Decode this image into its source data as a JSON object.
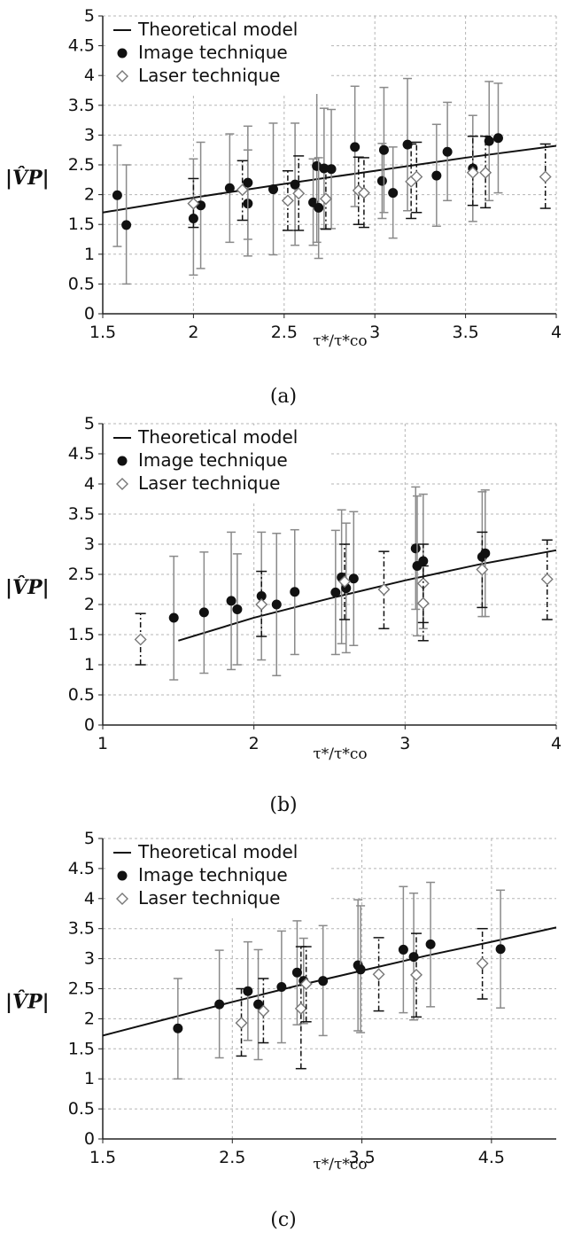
{
  "chart_data": [
    {
      "type": "scatter",
      "panel_label": "(a)",
      "xlabel": "τ*/τ*co",
      "ylabel": "|V̂P|",
      "xlim": [
        1.5,
        4
      ],
      "ylim": [
        0,
        5
      ],
      "x_ticks": [
        "1.5",
        "2",
        "2.5",
        "3",
        "3.5",
        "4"
      ],
      "y_ticks": [
        "0",
        "0.5",
        "1",
        "1.5",
        "2",
        "2.5",
        "3",
        "3.5",
        "4",
        "4.5",
        "5"
      ],
      "grid": true,
      "legend_position": "top-left",
      "series": [
        {
          "name": "Theoretical model",
          "kind": "line",
          "x": [
            1.5,
            2,
            2.5,
            3,
            3.5,
            4
          ],
          "y": [
            1.7,
            1.95,
            2.18,
            2.4,
            2.62,
            2.82
          ]
        },
        {
          "name": "Image technique",
          "kind": "filled-circle",
          "points": [
            {
              "x": 1.58,
              "y": 1.99,
              "lo": 1.13,
              "hi": 2.83
            },
            {
              "x": 1.63,
              "y": 1.49,
              "lo": 0.5,
              "hi": 2.5
            },
            {
              "x": 2.0,
              "y": 1.6,
              "lo": 0.65,
              "hi": 2.6
            },
            {
              "x": 2.04,
              "y": 1.82,
              "lo": 0.76,
              "hi": 2.88
            },
            {
              "x": 2.2,
              "y": 2.11,
              "lo": 1.2,
              "hi": 3.02
            },
            {
              "x": 2.3,
              "y": 1.85,
              "lo": 0.97,
              "hi": 2.75
            },
            {
              "x": 2.3,
              "y": 2.2,
              "lo": 1.25,
              "hi": 3.15
            },
            {
              "x": 2.44,
              "y": 2.09,
              "lo": 0.99,
              "hi": 3.2
            },
            {
              "x": 2.56,
              "y": 2.17,
              "lo": 1.15,
              "hi": 3.2
            },
            {
              "x": 2.66,
              "y": 1.87,
              "lo": 1.15,
              "hi": 2.6
            },
            {
              "x": 2.68,
              "y": 2.48,
              "lo": 1.2,
              "hi": 3.77
            },
            {
              "x": 2.69,
              "y": 1.78,
              "lo": 0.93,
              "hi": 2.62
            },
            {
              "x": 2.72,
              "y": 2.44,
              "lo": 1.43,
              "hi": 3.45
            },
            {
              "x": 2.76,
              "y": 2.43,
              "lo": 1.43,
              "hi": 3.43
            },
            {
              "x": 2.89,
              "y": 2.8,
              "lo": 1.8,
              "hi": 3.82
            },
            {
              "x": 3.04,
              "y": 2.23,
              "lo": 1.6,
              "hi": 2.86
            },
            {
              "x": 3.05,
              "y": 2.75,
              "lo": 1.7,
              "hi": 3.8
            },
            {
              "x": 3.1,
              "y": 2.03,
              "lo": 1.27,
              "hi": 2.8
            },
            {
              "x": 3.18,
              "y": 2.84,
              "lo": 1.73,
              "hi": 3.95
            },
            {
              "x": 3.34,
              "y": 2.32,
              "lo": 1.47,
              "hi": 3.18
            },
            {
              "x": 3.4,
              "y": 2.72,
              "lo": 1.9,
              "hi": 3.55
            },
            {
              "x": 3.54,
              "y": 2.44,
              "lo": 1.55,
              "hi": 3.33
            },
            {
              "x": 3.63,
              "y": 2.9,
              "lo": 1.9,
              "hi": 3.9
            },
            {
              "x": 3.68,
              "y": 2.95,
              "lo": 2.03,
              "hi": 3.87
            }
          ]
        },
        {
          "name": "Laser technique",
          "kind": "open-diamond",
          "points": [
            {
              "x": 2.0,
              "y": 1.85,
              "lo": 1.45,
              "hi": 2.27
            },
            {
              "x": 2.27,
              "y": 2.08,
              "lo": 1.57,
              "hi": 2.57
            },
            {
              "x": 2.52,
              "y": 1.9,
              "lo": 1.4,
              "hi": 2.4
            },
            {
              "x": 2.58,
              "y": 2.02,
              "lo": 1.4,
              "hi": 2.65
            },
            {
              "x": 2.73,
              "y": 1.93,
              "lo": 1.42,
              "hi": 2.45
            },
            {
              "x": 2.91,
              "y": 2.07,
              "lo": 1.5,
              "hi": 2.63
            },
            {
              "x": 2.94,
              "y": 2.03,
              "lo": 1.45,
              "hi": 2.62
            },
            {
              "x": 3.2,
              "y": 2.22,
              "lo": 1.6,
              "hi": 2.85
            },
            {
              "x": 3.23,
              "y": 2.3,
              "lo": 1.7,
              "hi": 2.88
            },
            {
              "x": 3.54,
              "y": 2.37,
              "lo": 1.82,
              "hi": 2.98
            },
            {
              "x": 3.61,
              "y": 2.37,
              "lo": 1.78,
              "hi": 2.98
            },
            {
              "x": 3.94,
              "y": 2.3,
              "lo": 1.77,
              "hi": 2.85
            }
          ]
        }
      ]
    },
    {
      "type": "scatter",
      "panel_label": "(b)",
      "xlabel": "τ*/τ*co",
      "ylabel": "|V̂P|",
      "xlim": [
        1,
        4
      ],
      "ylim": [
        0,
        5
      ],
      "x_ticks": [
        "1",
        "2",
        "3",
        "4"
      ],
      "y_ticks": [
        "0",
        "0.5",
        "1",
        "1.5",
        "2",
        "2.5",
        "3",
        "3.5",
        "4",
        "4.5",
        "5"
      ],
      "grid": true,
      "legend_position": "top-left",
      "series": [
        {
          "name": "Theoretical model",
          "kind": "line",
          "x": [
            1.5,
            2,
            2.5,
            3,
            3.5,
            4
          ],
          "y": [
            1.4,
            1.78,
            2.1,
            2.4,
            2.67,
            2.9
          ]
        },
        {
          "name": "Image technique",
          "kind": "filled-circle",
          "points": [
            {
              "x": 1.47,
              "y": 1.78,
              "lo": 0.75,
              "hi": 2.8
            },
            {
              "x": 1.67,
              "y": 1.87,
              "lo": 0.86,
              "hi": 2.87
            },
            {
              "x": 1.85,
              "y": 2.06,
              "lo": 0.92,
              "hi": 3.2
            },
            {
              "x": 1.89,
              "y": 1.92,
              "lo": 1.0,
              "hi": 2.84
            },
            {
              "x": 2.05,
              "y": 2.14,
              "lo": 1.08,
              "hi": 3.2
            },
            {
              "x": 2.15,
              "y": 2.0,
              "lo": 0.82,
              "hi": 3.18
            },
            {
              "x": 2.27,
              "y": 2.21,
              "lo": 1.17,
              "hi": 3.24
            },
            {
              "x": 2.54,
              "y": 2.2,
              "lo": 1.17,
              "hi": 3.23
            },
            {
              "x": 2.58,
              "y": 2.45,
              "lo": 1.35,
              "hi": 3.57
            },
            {
              "x": 2.61,
              "y": 2.27,
              "lo": 1.2,
              "hi": 3.35
            },
            {
              "x": 2.66,
              "y": 2.43,
              "lo": 1.32,
              "hi": 3.54
            },
            {
              "x": 3.07,
              "y": 2.93,
              "lo": 1.92,
              "hi": 3.95
            },
            {
              "x": 3.08,
              "y": 2.64,
              "lo": 1.48,
              "hi": 3.8
            },
            {
              "x": 3.12,
              "y": 2.72,
              "lo": 1.6,
              "hi": 3.83
            },
            {
              "x": 3.51,
              "y": 2.79,
              "lo": 1.8,
              "hi": 3.87
            },
            {
              "x": 3.53,
              "y": 2.85,
              "lo": 1.8,
              "hi": 3.9
            }
          ]
        },
        {
          "name": "Laser technique",
          "kind": "open-diamond",
          "points": [
            {
              "x": 1.25,
              "y": 1.42,
              "lo": 1.0,
              "hi": 1.85
            },
            {
              "x": 2.05,
              "y": 2.0,
              "lo": 1.47,
              "hi": 2.55
            },
            {
              "x": 2.6,
              "y": 2.38,
              "lo": 1.75,
              "hi": 3.0
            },
            {
              "x": 2.86,
              "y": 2.25,
              "lo": 1.6,
              "hi": 2.88
            },
            {
              "x": 3.12,
              "y": 2.35,
              "lo": 1.7,
              "hi": 3.0
            },
            {
              "x": 3.12,
              "y": 2.02,
              "lo": 1.4,
              "hi": 2.64
            },
            {
              "x": 3.51,
              "y": 2.58,
              "lo": 1.95,
              "hi": 3.2
            },
            {
              "x": 3.94,
              "y": 2.42,
              "lo": 1.75,
              "hi": 3.07
            }
          ]
        }
      ]
    },
    {
      "type": "scatter",
      "panel_label": "(c)",
      "xlabel": "τ*/τ*co",
      "ylabel": "|V̂P|",
      "xlim": [
        1.5,
        5
      ],
      "ylim": [
        0,
        5
      ],
      "x_ticks": [
        "1.5",
        "2.5",
        "3.5",
        "4.5"
      ],
      "y_ticks": [
        "0",
        "0.5",
        "1",
        "1.5",
        "2",
        "2.5",
        "3",
        "3.5",
        "4",
        "4.5",
        "5"
      ],
      "grid": true,
      "legend_position": "top-left",
      "series": [
        {
          "name": "Theoretical model",
          "kind": "line",
          "x": [
            1.5,
            2,
            2.5,
            3,
            3.5,
            4,
            4.5,
            5
          ],
          "y": [
            1.72,
            2.0,
            2.28,
            2.55,
            2.8,
            3.05,
            3.28,
            3.52
          ]
        },
        {
          "name": "Image technique",
          "kind": "filled-circle",
          "points": [
            {
              "x": 2.08,
              "y": 1.84,
              "lo": 1.0,
              "hi": 2.67
            },
            {
              "x": 2.4,
              "y": 2.24,
              "lo": 1.35,
              "hi": 3.14
            },
            {
              "x": 2.62,
              "y": 2.46,
              "lo": 1.64,
              "hi": 3.28
            },
            {
              "x": 2.7,
              "y": 2.24,
              "lo": 1.32,
              "hi": 3.15
            },
            {
              "x": 2.88,
              "y": 2.53,
              "lo": 1.6,
              "hi": 3.46
            },
            {
              "x": 3.0,
              "y": 2.77,
              "lo": 1.9,
              "hi": 3.63
            },
            {
              "x": 3.05,
              "y": 2.63,
              "lo": 1.92,
              "hi": 3.34
            },
            {
              "x": 3.2,
              "y": 2.63,
              "lo": 1.72,
              "hi": 3.55
            },
            {
              "x": 3.47,
              "y": 2.89,
              "lo": 1.8,
              "hi": 3.98
            },
            {
              "x": 3.49,
              "y": 2.82,
              "lo": 1.77,
              "hi": 3.88
            },
            {
              "x": 3.82,
              "y": 3.15,
              "lo": 2.1,
              "hi": 4.2
            },
            {
              "x": 3.9,
              "y": 3.03,
              "lo": 1.98,
              "hi": 4.09
            },
            {
              "x": 4.03,
              "y": 3.24,
              "lo": 2.2,
              "hi": 4.27
            },
            {
              "x": 4.57,
              "y": 3.16,
              "lo": 2.18,
              "hi": 4.14
            }
          ]
        },
        {
          "name": "Laser technique",
          "kind": "open-diamond",
          "points": [
            {
              "x": 2.57,
              "y": 1.93,
              "lo": 1.38,
              "hi": 2.5
            },
            {
              "x": 2.74,
              "y": 2.13,
              "lo": 1.6,
              "hi": 2.67
            },
            {
              "x": 3.03,
              "y": 2.17,
              "lo": 1.17,
              "hi": 3.2
            },
            {
              "x": 3.07,
              "y": 2.58,
              "lo": 1.95,
              "hi": 3.2
            },
            {
              "x": 3.63,
              "y": 2.74,
              "lo": 2.13,
              "hi": 3.35
            },
            {
              "x": 3.92,
              "y": 2.73,
              "lo": 2.03,
              "hi": 3.42
            },
            {
              "x": 4.43,
              "y": 2.92,
              "lo": 2.33,
              "hi": 3.5
            }
          ]
        }
      ]
    }
  ]
}
